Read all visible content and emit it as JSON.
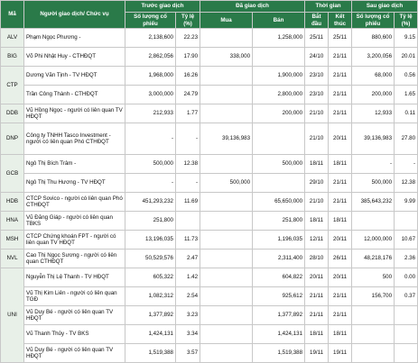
{
  "header": {
    "ma": "Mã",
    "person": "Người giao dịch/ Chức vụ",
    "before": "Trước giao dịch",
    "traded": "Đã giao dịch",
    "time": "Thời gian",
    "after": "Sau giao dịch",
    "qty": "Số lượng cổ phiếu",
    "pct": "Tỷ lệ (%)",
    "buy": "Mua",
    "sell": "Bán",
    "start": "Bắt đầu",
    "end": "Kết thúc",
    "qty2": "Số lượng cổ phiếu",
    "pct2": "Tỷ lệ (%)"
  },
  "rows": [
    {
      "code": "ALV",
      "person": "Phạm Ngọc Phương -",
      "qty_before": "2,138,600",
      "pct_before": "22.23",
      "buy": "",
      "sell": "1,258,000",
      "start": "25/11",
      "end": "25/11",
      "qty_after": "880,600",
      "pct_after": "9.15"
    },
    {
      "code": "BIG",
      "person": "Võ Phi Nhật Huy - CTHĐQT",
      "qty_before": "2,862,056",
      "pct_before": "17.90",
      "buy": "338,000",
      "sell": "",
      "start": "24/10",
      "end": "21/11",
      "qty_after": "3,200,056",
      "pct_after": "20.01"
    },
    {
      "code": "CTP",
      "person": "Dương Văn Tịnh - TV HĐQT",
      "qty_before": "1,968,000",
      "pct_before": "16.26",
      "buy": "",
      "sell": "1,900,000",
      "start": "23/10",
      "end": "21/11",
      "qty_after": "68,000",
      "pct_after": "0.56"
    },
    {
      "code": "",
      "person": "Trần Công Thành - CTHĐQT",
      "qty_before": "3,000,000",
      "pct_before": "24.79",
      "buy": "",
      "sell": "2,800,000",
      "start": "23/10",
      "end": "21/11",
      "qty_after": "200,000",
      "pct_after": "1.65"
    },
    {
      "code": "DDB",
      "person": "Vũ Hồng Ngọc - người có liên quan TV HĐQT",
      "qty_before": "212,933",
      "pct_before": "1.77",
      "buy": "",
      "sell": "200,000",
      "start": "21/10",
      "end": "21/11",
      "qty_after": "12,933",
      "pct_after": "0.11"
    },
    {
      "code": "DNP",
      "person": "Công ty TNHH Tasco Investment - người có liên quan Phó CTHĐQT",
      "qty_before": "-",
      "pct_before": "-",
      "buy": "39,136,983",
      "sell": "",
      "start": "21/10",
      "end": "20/11",
      "qty_after": "39,136,983",
      "pct_after": "27.80"
    },
    {
      "code": "GCB",
      "person": "Ngô Thị Bích Trâm -",
      "qty_before": "500,000",
      "pct_before": "12.38",
      "buy": "",
      "sell": "500,000",
      "start": "18/11",
      "end": "18/11",
      "qty_after": "-",
      "pct_after": "-"
    },
    {
      "code": "",
      "person": "Ngô Thị Thu Hương - TV HĐQT",
      "qty_before": "-",
      "pct_before": "-",
      "buy": "500,000",
      "sell": "",
      "start": "29/10",
      "end": "21/11",
      "qty_after": "500,000",
      "pct_after": "12.38"
    },
    {
      "code": "HDB",
      "person": "CTCP Sovico - người có liên quan Phó CTHĐQT",
      "qty_before": "451,293,232",
      "pct_before": "11.69",
      "buy": "",
      "sell": "65,650,000",
      "start": "21/10",
      "end": "21/11",
      "qty_after": "385,643,232",
      "pct_after": "9.99"
    },
    {
      "code": "HNA",
      "person": "Vũ Đăng Giáp - người có liên quan TBKS",
      "qty_before": "251,800",
      "pct_before": "",
      "buy": "",
      "sell": "251,800",
      "start": "18/11",
      "end": "18/11",
      "qty_after": "",
      "pct_after": ""
    },
    {
      "code": "MSH",
      "person": "CTCP Chứng khoán FPT - người có liên quan TV HĐQT",
      "qty_before": "13,196,035",
      "pct_before": "11.73",
      "buy": "",
      "sell": "1,196,035",
      "start": "12/11",
      "end": "20/11",
      "qty_after": "12,000,000",
      "pct_after": "10.67"
    },
    {
      "code": "NVL",
      "person": "Cao Thị Ngọc Sương - người có liên quan CTHĐQT",
      "qty_before": "50,529,576",
      "pct_before": "2.47",
      "buy": "",
      "sell": "2,311,400",
      "start": "28/10",
      "end": "26/11",
      "qty_after": "48,218,176",
      "pct_after": "2.36"
    },
    {
      "code": "UNI",
      "person": "Nguyễn Thị Lệ Thanh - TV HĐQT",
      "qty_before": "605,322",
      "pct_before": "1.42",
      "buy": "",
      "sell": "604,822",
      "start": "20/11",
      "end": "20/11",
      "qty_after": "500",
      "pct_after": "0.00"
    },
    {
      "code": "",
      "person": "Vũ Thị Kim Liên - người có liên quan TGĐ",
      "qty_before": "1,082,312",
      "pct_before": "2.54",
      "buy": "",
      "sell": "925,612",
      "start": "21/11",
      "end": "21/11",
      "qty_after": "156,700",
      "pct_after": "0.37"
    },
    {
      "code": "",
      "person": "Vũ Duy Bé - người có liên quan TV HĐQT",
      "qty_before": "1,377,892",
      "pct_before": "3.23",
      "buy": "",
      "sell": "1,377,892",
      "start": "21/11",
      "end": "21/11",
      "qty_after": "",
      "pct_after": ""
    },
    {
      "code": "",
      "person": "Vũ Thanh Thủy - TV BKS",
      "qty_before": "1,424,131",
      "pct_before": "3.34",
      "buy": "",
      "sell": "1,424,131",
      "start": "18/11",
      "end": "18/11",
      "qty_after": "",
      "pct_after": ""
    },
    {
      "code": "",
      "person": "Vũ Duy Bé - người có liên quan TV HĐQT",
      "qty_before": "1,519,388",
      "pct_before": "3.57",
      "buy": "",
      "sell": "1,519,388",
      "start": "19/11",
      "end": "19/11",
      "qty_after": "",
      "pct_after": ""
    }
  ]
}
